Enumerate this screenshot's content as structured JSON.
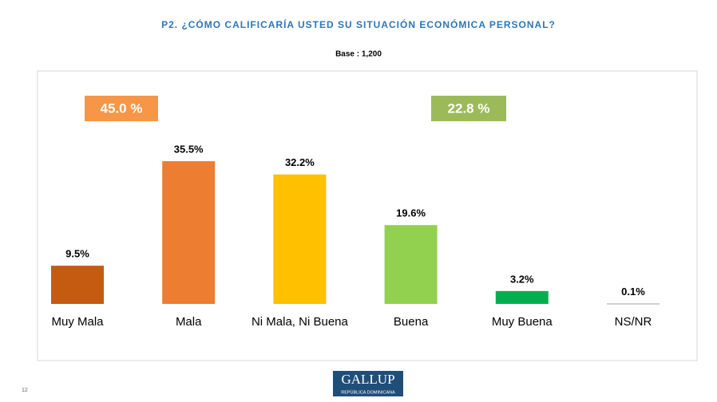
{
  "chart_data": {
    "type": "bar",
    "title": "P2. ¿CÓMO CALIFICARÍA USTED SU SITUACIÓN ECONÓMICA PERSONAL?",
    "subtitle": "Base : 1,200",
    "categories": [
      "Muy Mala",
      "Mala",
      "Ni Mala, Ni Buena",
      "Buena",
      "Muy Buena",
      "NS/NR"
    ],
    "values": [
      9.5,
      35.5,
      32.2,
      19.6,
      3.2,
      0.1
    ],
    "value_labels": [
      "9.5%",
      "35.5%",
      "32.2%",
      "19.6%",
      "3.2%",
      "0.1%"
    ],
    "colors": [
      "#c55a11",
      "#ed7d31",
      "#ffc000",
      "#92d050",
      "#00b050",
      "#a6a6a6"
    ],
    "ylim": [
      0,
      40
    ],
    "annotations": [
      {
        "text": "45.0 %",
        "color": "#f79646"
      },
      {
        "text": "22.8 %",
        "color": "#9bbb59"
      }
    ]
  },
  "footer": {
    "page_number": "12",
    "logo": "GALLUP",
    "logo_subtitle": "REPÚBLICA DOMINICANA"
  }
}
